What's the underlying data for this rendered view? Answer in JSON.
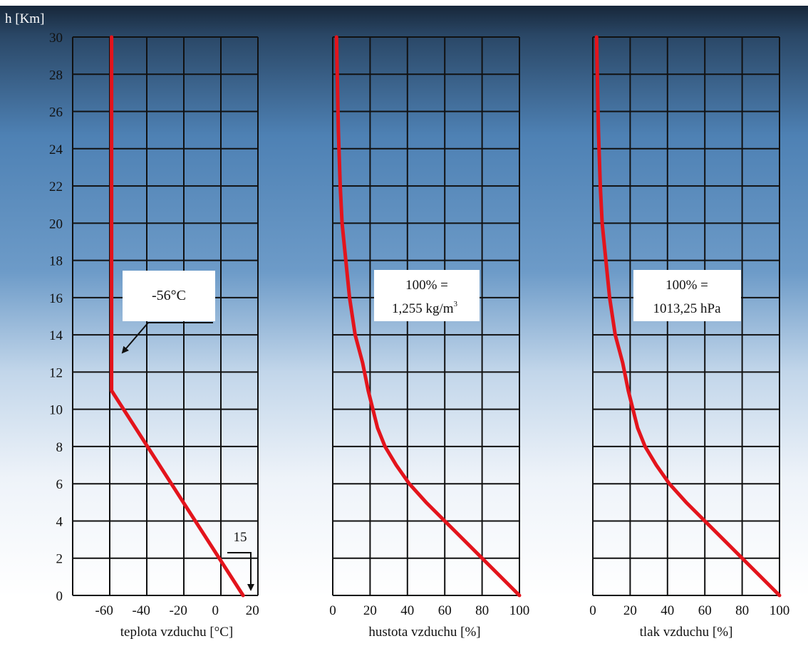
{
  "y_axis_label": "h [Km]",
  "y_ticks": [
    0,
    2,
    4,
    6,
    8,
    10,
    12,
    14,
    16,
    18,
    20,
    22,
    24,
    26,
    28,
    30
  ],
  "colors": {
    "curve": "#e3141c",
    "grid": "#111111",
    "sky_top": "#17273a",
    "sky_mid": "#4e81b4",
    "sky_bottom": "#ffffff"
  },
  "chart_data": [
    {
      "type": "line",
      "xlabel": "teplota vzduchu [°C]",
      "ylabel": "h [Km]",
      "xticks": [
        "-60",
        "-40",
        "-20",
        "0",
        "20"
      ],
      "xlim": [
        -77,
        23
      ],
      "ylim": [
        0,
        30
      ],
      "grid": true,
      "series": [
        {
          "x": [
            15,
            -56,
            -56
          ],
          "y": [
            0,
            11,
            30
          ]
        }
      ],
      "annotations": {
        "box": "-56°C",
        "surface_value": "15"
      }
    },
    {
      "type": "line",
      "xlabel": "hustota vzduchu [%]",
      "ylabel": "h [Km]",
      "xticks": [
        "0",
        "20",
        "40",
        "60",
        "80",
        "100"
      ],
      "xlim": [
        0,
        100
      ],
      "ylim": [
        0,
        30
      ],
      "grid": true,
      "series": [
        {
          "x": [
            100,
            80,
            60,
            50,
            41,
            34,
            28,
            24,
            19,
            16,
            12,
            9,
            7,
            5,
            4,
            3,
            2
          ],
          "y": [
            0,
            2,
            4,
            5,
            6,
            7,
            8,
            9,
            11,
            12.5,
            14,
            16,
            18,
            20,
            22,
            25,
            30
          ]
        }
      ],
      "annotations": {
        "box_line1": "100% =",
        "box_line2": "1,255 kg/m",
        "box_line2_sup": "3"
      }
    },
    {
      "type": "line",
      "xlabel": "tlak vzduchu [%]",
      "ylabel": "h [Km]",
      "xticks": [
        "0",
        "20",
        "40",
        "60",
        "80",
        "100"
      ],
      "xlim": [
        0,
        100
      ],
      "ylim": [
        0,
        30
      ],
      "grid": true,
      "series": [
        {
          "x": [
            100,
            80,
            60,
            50,
            41,
            34,
            28,
            24,
            19,
            16,
            12,
            9,
            7,
            5,
            4,
            3,
            2
          ],
          "y": [
            0,
            2,
            4,
            5,
            6,
            7,
            8,
            9,
            11,
            12.5,
            14,
            16,
            18,
            20,
            22,
            25,
            30
          ]
        }
      ],
      "annotations": {
        "box_line1": "100% =",
        "box_line2": "1013,25 hPa"
      }
    }
  ]
}
